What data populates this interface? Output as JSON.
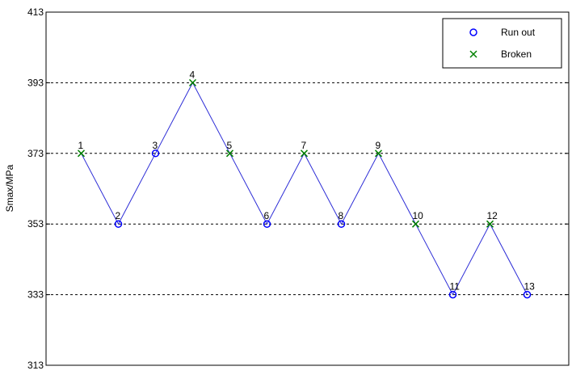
{
  "chart_data": {
    "type": "line",
    "title": "",
    "xlabel": "",
    "ylabel": "Smax/MPa",
    "ylim": [
      313,
      413
    ],
    "yticks": [
      "313",
      "333",
      "353",
      "373",
      "393",
      "413"
    ],
    "grid_y_dashed": [
      333,
      353,
      373,
      393
    ],
    "line_color": "#2b2bd6",
    "series": [
      {
        "name": "Run out",
        "marker": "circle",
        "color": "#0000ff",
        "points": [
          {
            "x": 2,
            "y": 353,
            "label": "2"
          },
          {
            "x": 3,
            "y": 373,
            "label": "3"
          },
          {
            "x": 6,
            "y": 353,
            "label": "6"
          },
          {
            "x": 8,
            "y": 353,
            "label": "8"
          },
          {
            "x": 11,
            "y": 333,
            "label": "11"
          },
          {
            "x": 13,
            "y": 333,
            "label": "13"
          }
        ]
      },
      {
        "name": "Broken",
        "marker": "x",
        "color": "#008000",
        "points": [
          {
            "x": 1,
            "y": 373,
            "label": "1"
          },
          {
            "x": 4,
            "y": 393,
            "label": "4"
          },
          {
            "x": 5,
            "y": 373,
            "label": "5"
          },
          {
            "x": 7,
            "y": 373,
            "label": "7"
          },
          {
            "x": 9,
            "y": 373,
            "label": "9"
          },
          {
            "x": 10,
            "y": 353,
            "label": "10"
          },
          {
            "x": 12,
            "y": 353,
            "label": "12"
          }
        ]
      }
    ],
    "sequence": [
      {
        "x": 1,
        "y": 373
      },
      {
        "x": 2,
        "y": 353
      },
      {
        "x": 3,
        "y": 373
      },
      {
        "x": 4,
        "y": 393
      },
      {
        "x": 5,
        "y": 373
      },
      {
        "x": 6,
        "y": 353
      },
      {
        "x": 7,
        "y": 373
      },
      {
        "x": 8,
        "y": 353
      },
      {
        "x": 9,
        "y": 373
      },
      {
        "x": 10,
        "y": 353
      },
      {
        "x": 11,
        "y": 333
      },
      {
        "x": 12,
        "y": 353
      },
      {
        "x": 13,
        "y": 333
      }
    ],
    "legend": {
      "position": "top-right",
      "entries": [
        "Run out",
        "Broken"
      ]
    }
  }
}
